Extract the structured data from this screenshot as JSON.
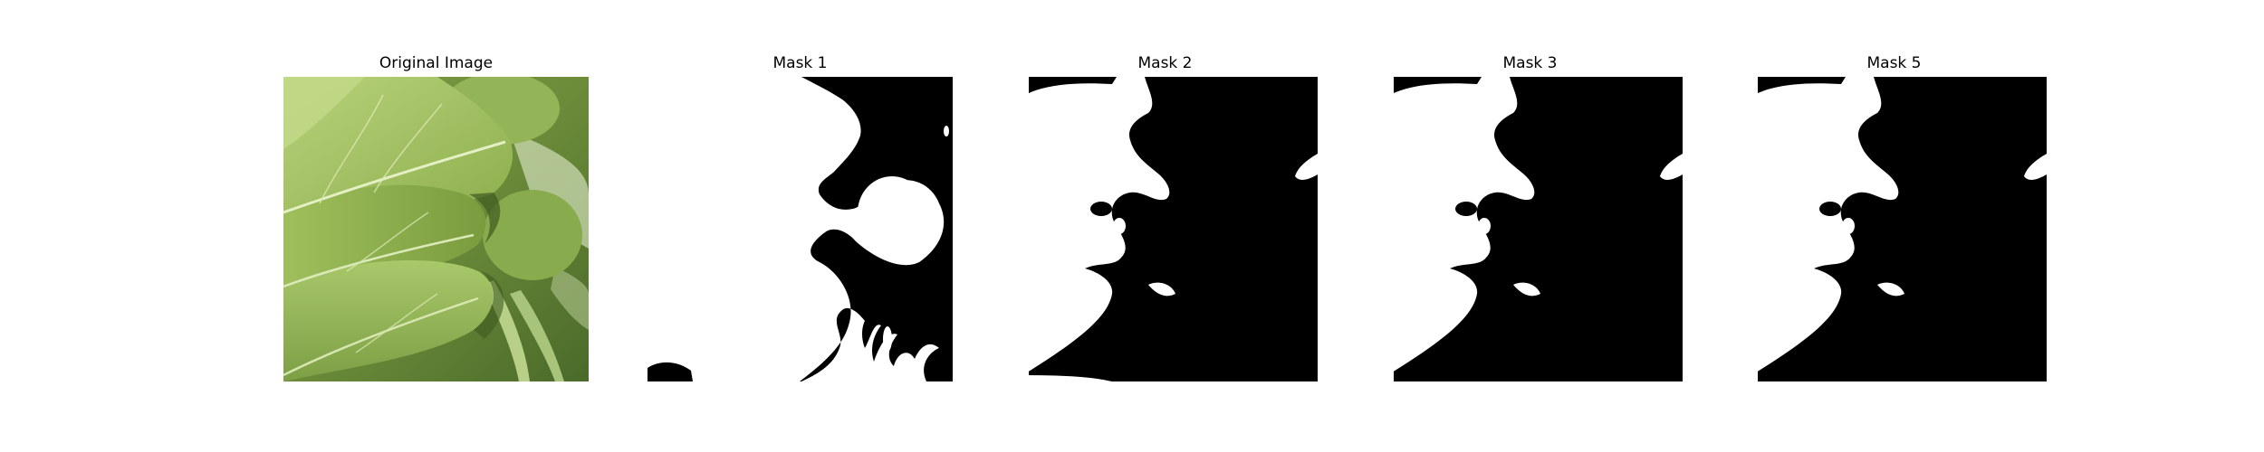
{
  "panels": [
    {
      "title": "Original Image"
    },
    {
      "title": "Mask 1"
    },
    {
      "title": "Mask 2"
    },
    {
      "title": "Mask 3"
    },
    {
      "title": "Mask 5"
    }
  ],
  "colors": {
    "mask_foreground": "#ffffff",
    "mask_background": "#000000",
    "leaf_light": "#a9c56a",
    "leaf_mid": "#8aab4a",
    "leaf_dark": "#4f6e2a"
  }
}
